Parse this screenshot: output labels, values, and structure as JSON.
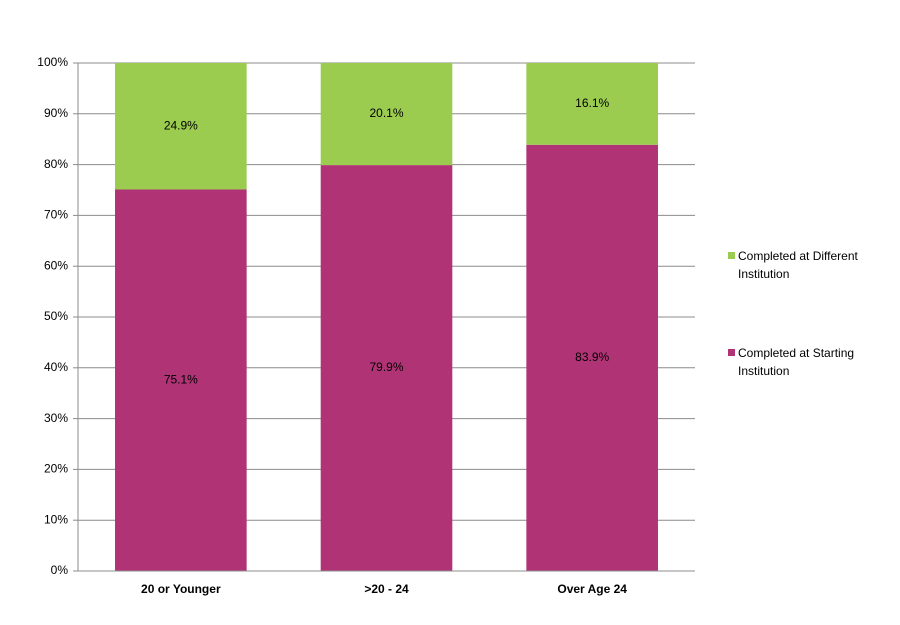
{
  "chart_data": {
    "type": "stacked_bar",
    "categories": [
      "20 or Younger",
      ">20 - 24",
      "Over Age 24"
    ],
    "series": [
      {
        "name": "Completed at Starting Institution",
        "color": "#b03376",
        "values": [
          75.1,
          79.9,
          83.9
        ],
        "value_labels": [
          "75.1%",
          "79.9%",
          "83.9%"
        ]
      },
      {
        "name": "Completed at Different Institution",
        "color": "#9bcc50",
        "values": [
          24.9,
          20.1,
          16.1
        ],
        "value_labels": [
          "24.9%",
          "20.1%",
          "16.1%"
        ]
      }
    ],
    "ylim": [
      0,
      100
    ],
    "yticks": [
      {
        "value": 0,
        "label": "0%"
      },
      {
        "value": 10,
        "label": "10%"
      },
      {
        "value": 20,
        "label": "20%"
      },
      {
        "value": 30,
        "label": "30%"
      },
      {
        "value": 40,
        "label": "40%"
      },
      {
        "value": 50,
        "label": "50%"
      },
      {
        "value": 60,
        "label": "60%"
      },
      {
        "value": 70,
        "label": "70%"
      },
      {
        "value": 80,
        "label": "80%"
      },
      {
        "value": 90,
        "label": "90%"
      },
      {
        "value": 100,
        "label": "100%"
      }
    ],
    "grid": true,
    "legend": "right"
  }
}
